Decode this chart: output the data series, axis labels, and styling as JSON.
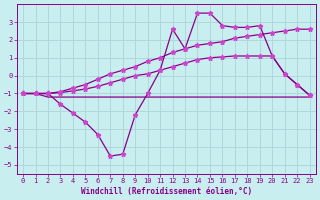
{
  "bg_color": "#c8eef0",
  "grid_color": "#b0d8dc",
  "line_color": "#880088",
  "marker_color": "#cc44cc",
  "xlabel": "Windchill (Refroidissement éolien,°C)",
  "xlim": [
    -0.5,
    23.5
  ],
  "ylim": [
    -5.5,
    4.0
  ],
  "yticks": [
    -5,
    -4,
    -3,
    -2,
    -1,
    0,
    1,
    2,
    3
  ],
  "xticks": [
    0,
    1,
    2,
    3,
    4,
    5,
    6,
    7,
    8,
    9,
    10,
    11,
    12,
    13,
    14,
    15,
    16,
    17,
    18,
    19,
    20,
    21,
    22,
    23
  ],
  "series": {
    "spike_x": [
      0,
      1,
      2,
      3,
      4,
      5,
      6,
      7,
      8,
      9,
      10,
      11,
      12,
      13,
      14,
      15,
      16,
      17,
      18,
      19,
      20,
      21,
      22,
      23
    ],
    "spike_y": [
      -1.0,
      -1.0,
      -1.0,
      -1.6,
      -2.1,
      -2.6,
      -3.3,
      -4.5,
      -4.4,
      -2.2,
      -1.0,
      0.3,
      2.6,
      1.5,
      3.5,
      3.5,
      2.8,
      2.7,
      2.7,
      2.8,
      1.1,
      0.1,
      -0.5,
      -1.1
    ],
    "upper_x": [
      0,
      1,
      2,
      3,
      4,
      5,
      6,
      7,
      8,
      9,
      10,
      11,
      12,
      13,
      14,
      15,
      16,
      17,
      18,
      19,
      20,
      21,
      22,
      23
    ],
    "upper_y": [
      -1.0,
      -1.0,
      -1.0,
      -0.9,
      -0.7,
      -0.5,
      -0.2,
      0.1,
      0.3,
      0.5,
      0.8,
      1.0,
      1.3,
      1.5,
      1.7,
      1.8,
      1.9,
      2.1,
      2.2,
      2.3,
      2.4,
      2.5,
      2.6,
      2.6
    ],
    "mid_x": [
      0,
      1,
      2,
      3,
      4,
      5,
      6,
      7,
      8,
      9,
      10,
      11,
      12,
      13,
      14,
      15,
      16,
      17,
      18,
      19,
      20,
      21,
      22,
      23
    ],
    "mid_y": [
      -1.0,
      -1.0,
      -1.0,
      -0.95,
      -0.85,
      -0.75,
      -0.6,
      -0.4,
      -0.2,
      0.0,
      0.1,
      0.3,
      0.5,
      0.7,
      0.9,
      1.0,
      1.05,
      1.1,
      1.1,
      1.1,
      1.1,
      0.1,
      -0.5,
      -1.1
    ],
    "flat_x": [
      0,
      1,
      2,
      3,
      4,
      5,
      6,
      7,
      8,
      9,
      10,
      11,
      12,
      13,
      14,
      15,
      16,
      17,
      18,
      19,
      20,
      21,
      22,
      23
    ],
    "flat_y": [
      -1.0,
      -1.0,
      -1.2,
      -1.2,
      -1.2,
      -1.2,
      -1.2,
      -1.2,
      -1.2,
      -1.2,
      -1.2,
      -1.2,
      -1.2,
      -1.2,
      -1.2,
      -1.2,
      -1.2,
      -1.2,
      -1.2,
      -1.2,
      -1.2,
      -1.2,
      -1.2,
      -1.2
    ]
  }
}
